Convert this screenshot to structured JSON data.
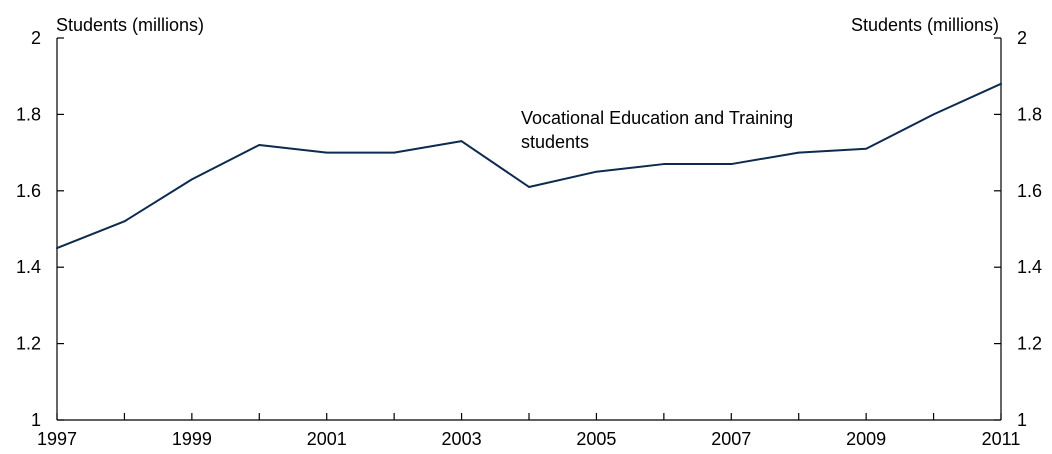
{
  "chart_data": {
    "type": "line",
    "left_axis_label": "Students (millions)",
    "right_axis_label": "Students (millions)",
    "annotation_lines": [
      "Vocational Education and Training",
      "students"
    ],
    "ylim": [
      1,
      2
    ],
    "y_ticks": [
      "1",
      "1.2",
      "1.4",
      "1.6",
      "1.8",
      "2"
    ],
    "xlim": [
      1997,
      2011
    ],
    "x_ticks": [
      "1997",
      "1999",
      "2001",
      "2003",
      "2005",
      "2007",
      "2009",
      "2011"
    ],
    "grid": false,
    "line_color": "#0d2a4f",
    "series": [
      {
        "x": [
          1997,
          1998,
          1999,
          2000,
          2001,
          2002,
          2003,
          2004,
          2005,
          2006,
          2007,
          2008,
          2009,
          2010,
          2011
        ],
        "y": [
          1.45,
          1.52,
          1.63,
          1.72,
          1.7,
          1.7,
          1.73,
          1.61,
          1.65,
          1.67,
          1.67,
          1.7,
          1.71,
          1.8,
          1.88
        ]
      }
    ]
  }
}
